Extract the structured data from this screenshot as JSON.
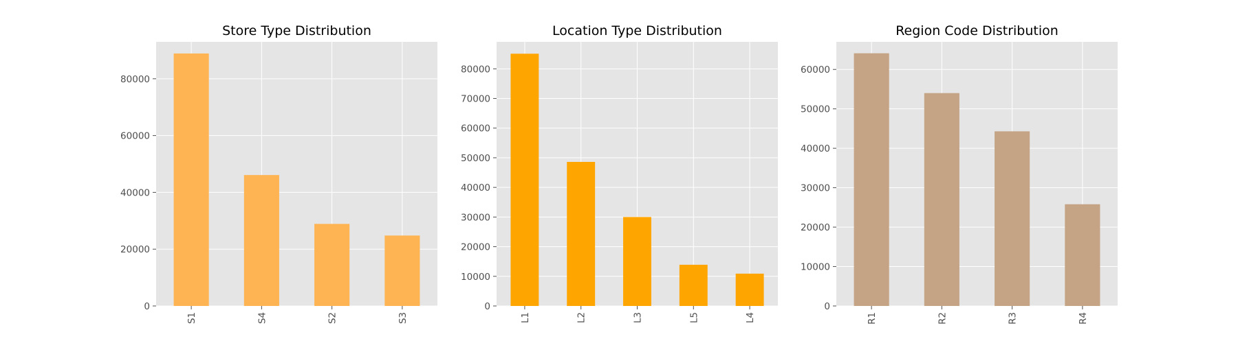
{
  "chart_data": [
    {
      "type": "bar",
      "title": "Store Type Distribution",
      "xlabel": "",
      "ylabel": "",
      "categories": [
        "S1",
        "S4",
        "S2",
        "S3"
      ],
      "values": [
        88900,
        46100,
        28900,
        24800
      ],
      "ylim": [
        0,
        93000
      ],
      "yticks": [
        0,
        20000,
        40000,
        60000,
        80000
      ],
      "bar_color": "#ffb454",
      "grid": true
    },
    {
      "type": "bar",
      "title": "Location Type Distribution",
      "xlabel": "",
      "ylabel": "",
      "categories": [
        "L1",
        "L2",
        "L3",
        "L5",
        "L4"
      ],
      "values": [
        85100,
        48600,
        30000,
        13900,
        10900
      ],
      "ylim": [
        0,
        89100
      ],
      "yticks": [
        0,
        10000,
        20000,
        30000,
        40000,
        50000,
        60000,
        70000,
        80000
      ],
      "bar_color": "#ffa500",
      "grid": true
    },
    {
      "type": "bar",
      "title": "Region Code Distribution",
      "xlabel": "",
      "ylabel": "",
      "categories": [
        "R1",
        "R2",
        "R3",
        "R4"
      ],
      "values": [
        64100,
        54000,
        44300,
        25800
      ],
      "ylim": [
        0,
        67000
      ],
      "yticks": [
        0,
        10000,
        20000,
        30000,
        40000,
        50000,
        60000
      ],
      "bar_color": "#c4a484",
      "grid": true
    }
  ],
  "style": {
    "axes_background": "#e5e5e5",
    "grid_color": "#ffffff",
    "tick_color": "#4d4d4d"
  }
}
